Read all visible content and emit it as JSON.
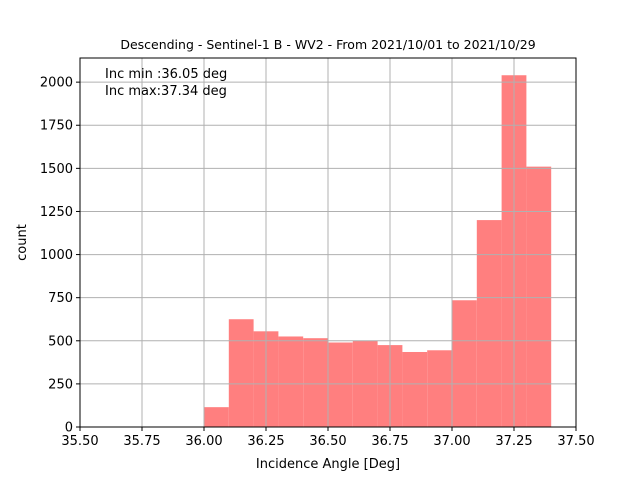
{
  "chart_data": {
    "type": "histogram",
    "title": "Descending - Sentinel-1 B - WV2 - From 2021/10/01 to 2021/10/29",
    "xlabel": "Incidence Angle [Deg]",
    "ylabel": "count",
    "xlim": [
      35.5,
      37.5
    ],
    "ylim": [
      0,
      2140
    ],
    "xticks": [
      "35.50",
      "35.75",
      "36.00",
      "36.25",
      "36.50",
      "36.75",
      "37.00",
      "37.25",
      "37.50"
    ],
    "yticks": [
      "0",
      "250",
      "500",
      "750",
      "1000",
      "1250",
      "1500",
      "1750",
      "2000"
    ],
    "grid": true,
    "bar_color": "#ff7f7f",
    "annotations": [
      "Inc min :36.05 deg",
      "Inc max:37.34 deg"
    ],
    "bins": [
      {
        "x0": 36.0,
        "x1": 36.1,
        "count": 115
      },
      {
        "x0": 36.1,
        "x1": 36.2,
        "count": 625
      },
      {
        "x0": 36.2,
        "x1": 36.3,
        "count": 555
      },
      {
        "x0": 36.3,
        "x1": 36.4,
        "count": 525
      },
      {
        "x0": 36.4,
        "x1": 36.5,
        "count": 515
      },
      {
        "x0": 36.5,
        "x1": 36.6,
        "count": 490
      },
      {
        "x0": 36.6,
        "x1": 36.7,
        "count": 500
      },
      {
        "x0": 36.7,
        "x1": 36.8,
        "count": 475
      },
      {
        "x0": 36.8,
        "x1": 36.9,
        "count": 435
      },
      {
        "x0": 36.9,
        "x1": 37.0,
        "count": 445
      },
      {
        "x0": 37.0,
        "x1": 37.1,
        "count": 735
      },
      {
        "x0": 37.1,
        "x1": 37.2,
        "count": 1200
      },
      {
        "x0": 37.2,
        "x1": 37.3,
        "count": 2040
      },
      {
        "x0": 37.3,
        "x1": 37.4,
        "count": 1510
      }
    ]
  }
}
